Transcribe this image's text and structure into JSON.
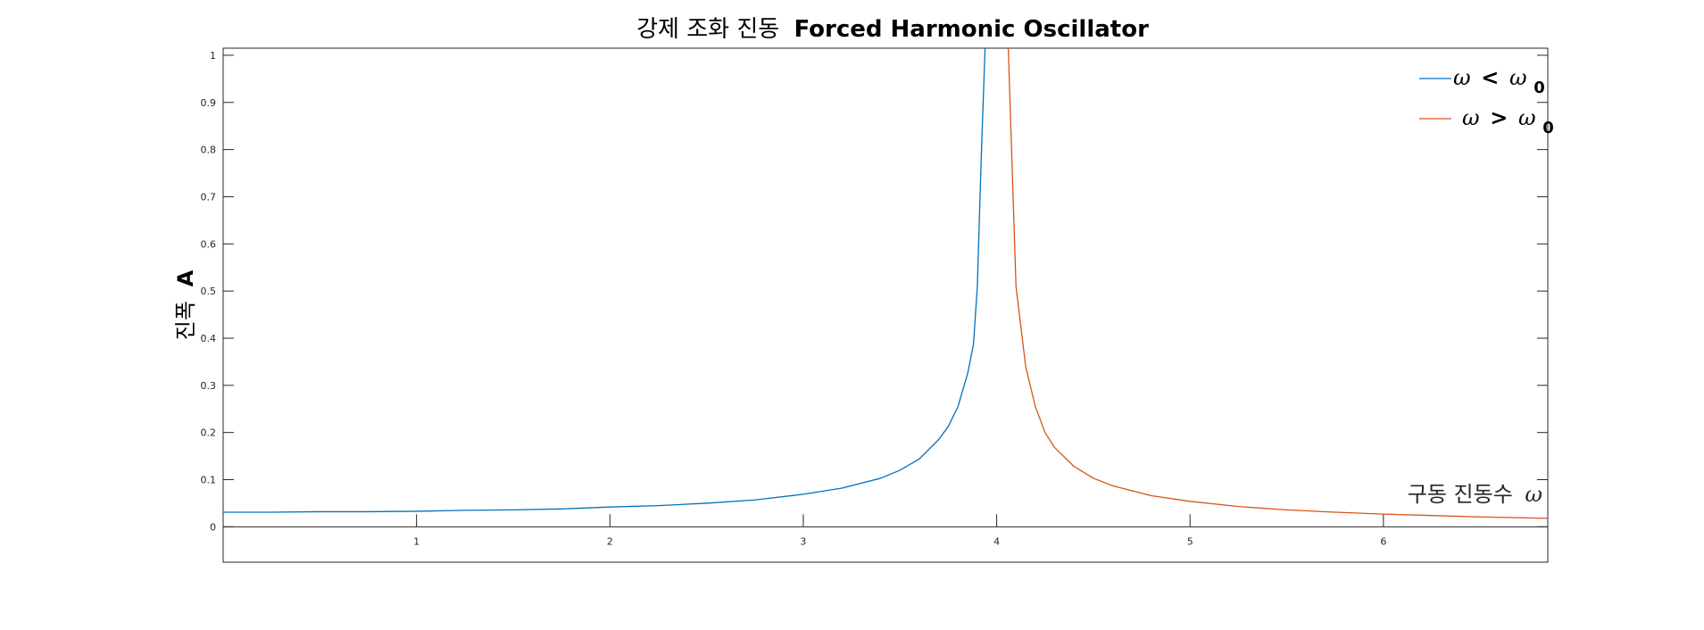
{
  "chart_data": {
    "type": "line",
    "title": {
      "korean": "강제 조화 진동",
      "english": "Forced Harmonic Oscillator"
    },
    "xlabel": {
      "text": "구동 진동수",
      "symbol": "ω"
    },
    "ylabel": {
      "korean": "진폭",
      "symbol": "A"
    },
    "xlim": [
      0,
      6.85
    ],
    "ylim": [
      -0.075,
      1.015
    ],
    "xticks": [
      1,
      2,
      3,
      4,
      5,
      6
    ],
    "xtick_labels": [
      "1",
      "2",
      "3",
      "4",
      "5",
      "6"
    ],
    "yticks": [
      0,
      0.1,
      0.2,
      0.3,
      0.4,
      0.5,
      0.6,
      0.7,
      0.8,
      0.9,
      1
    ],
    "ytick_labels": [
      "0",
      "0.1",
      "0.2",
      "0.3",
      "0.4",
      "0.5",
      "0.6",
      "0.7",
      "0.8",
      "0.9",
      "1"
    ],
    "legend_position": "top-right",
    "grid": false,
    "series": [
      {
        "legend": {
          "lhs": "ω",
          "op": "<",
          "rhs": "ω",
          "sub": "0"
        },
        "color": "#0072BD",
        "x": [
          0,
          0.25,
          0.5,
          0.75,
          1,
          1.25,
          1.5,
          1.75,
          2,
          2.25,
          2.5,
          2.75,
          3,
          3.2,
          3.4,
          3.5,
          3.6,
          3.7,
          3.75,
          3.8,
          3.85,
          3.88,
          3.9,
          3.92,
          3.94
        ],
        "y": [
          0.031,
          0.031,
          0.032,
          0.032,
          0.033,
          0.035,
          0.036,
          0.038,
          0.042,
          0.045,
          0.05,
          0.057,
          0.069,
          0.082,
          0.103,
          0.12,
          0.144,
          0.185,
          0.213,
          0.255,
          0.325,
          0.387,
          0.51,
          0.78,
          1.015
        ]
      },
      {
        "legend": {
          "lhs": "ω",
          "op": ">",
          "rhs": "ω",
          "sub": "0"
        },
        "color": "#D95319",
        "x": [
          4.06,
          4.1,
          4.15,
          4.2,
          4.25,
          4.3,
          4.4,
          4.5,
          4.6,
          4.8,
          5,
          5.25,
          5.5,
          5.75,
          6,
          6.25,
          6.5,
          6.85
        ],
        "y": [
          1.015,
          0.51,
          0.34,
          0.255,
          0.2,
          0.168,
          0.128,
          0.103,
          0.087,
          0.066,
          0.054,
          0.043,
          0.036,
          0.031,
          0.027,
          0.024,
          0.021,
          0.018
        ]
      }
    ]
  }
}
